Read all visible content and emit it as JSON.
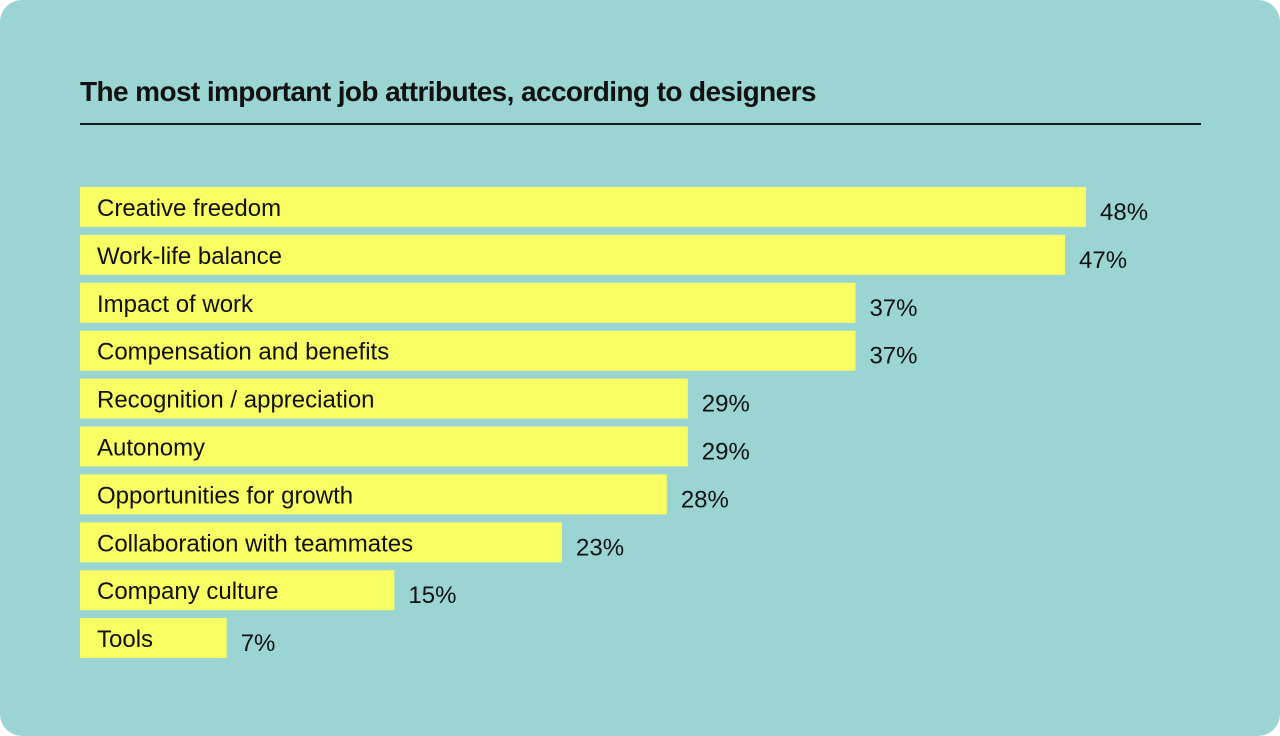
{
  "colors": {
    "background": "#9ad5d3",
    "bar": "#f7fd62",
    "text": "#111111"
  },
  "chart_data": {
    "type": "bar",
    "orientation": "horizontal",
    "title": "The most important job attributes, according to designers",
    "xlabel": "",
    "ylabel": "",
    "xlim": [
      0,
      48
    ],
    "grid": false,
    "legend": "none",
    "categories": [
      "Creative freedom",
      "Work-life balance",
      "Impact of work",
      "Compensation and benefits",
      "Recognition / appreciation",
      "Autonomy",
      "Opportunities for growth",
      "Collaboration with teammates",
      "Company culture",
      "Tools"
    ],
    "values": [
      48,
      47,
      37,
      37,
      29,
      29,
      28,
      23,
      15,
      7
    ],
    "value_labels": [
      "48%",
      "47%",
      "37%",
      "37%",
      "29%",
      "29%",
      "28%",
      "23%",
      "15%",
      "7%"
    ]
  }
}
